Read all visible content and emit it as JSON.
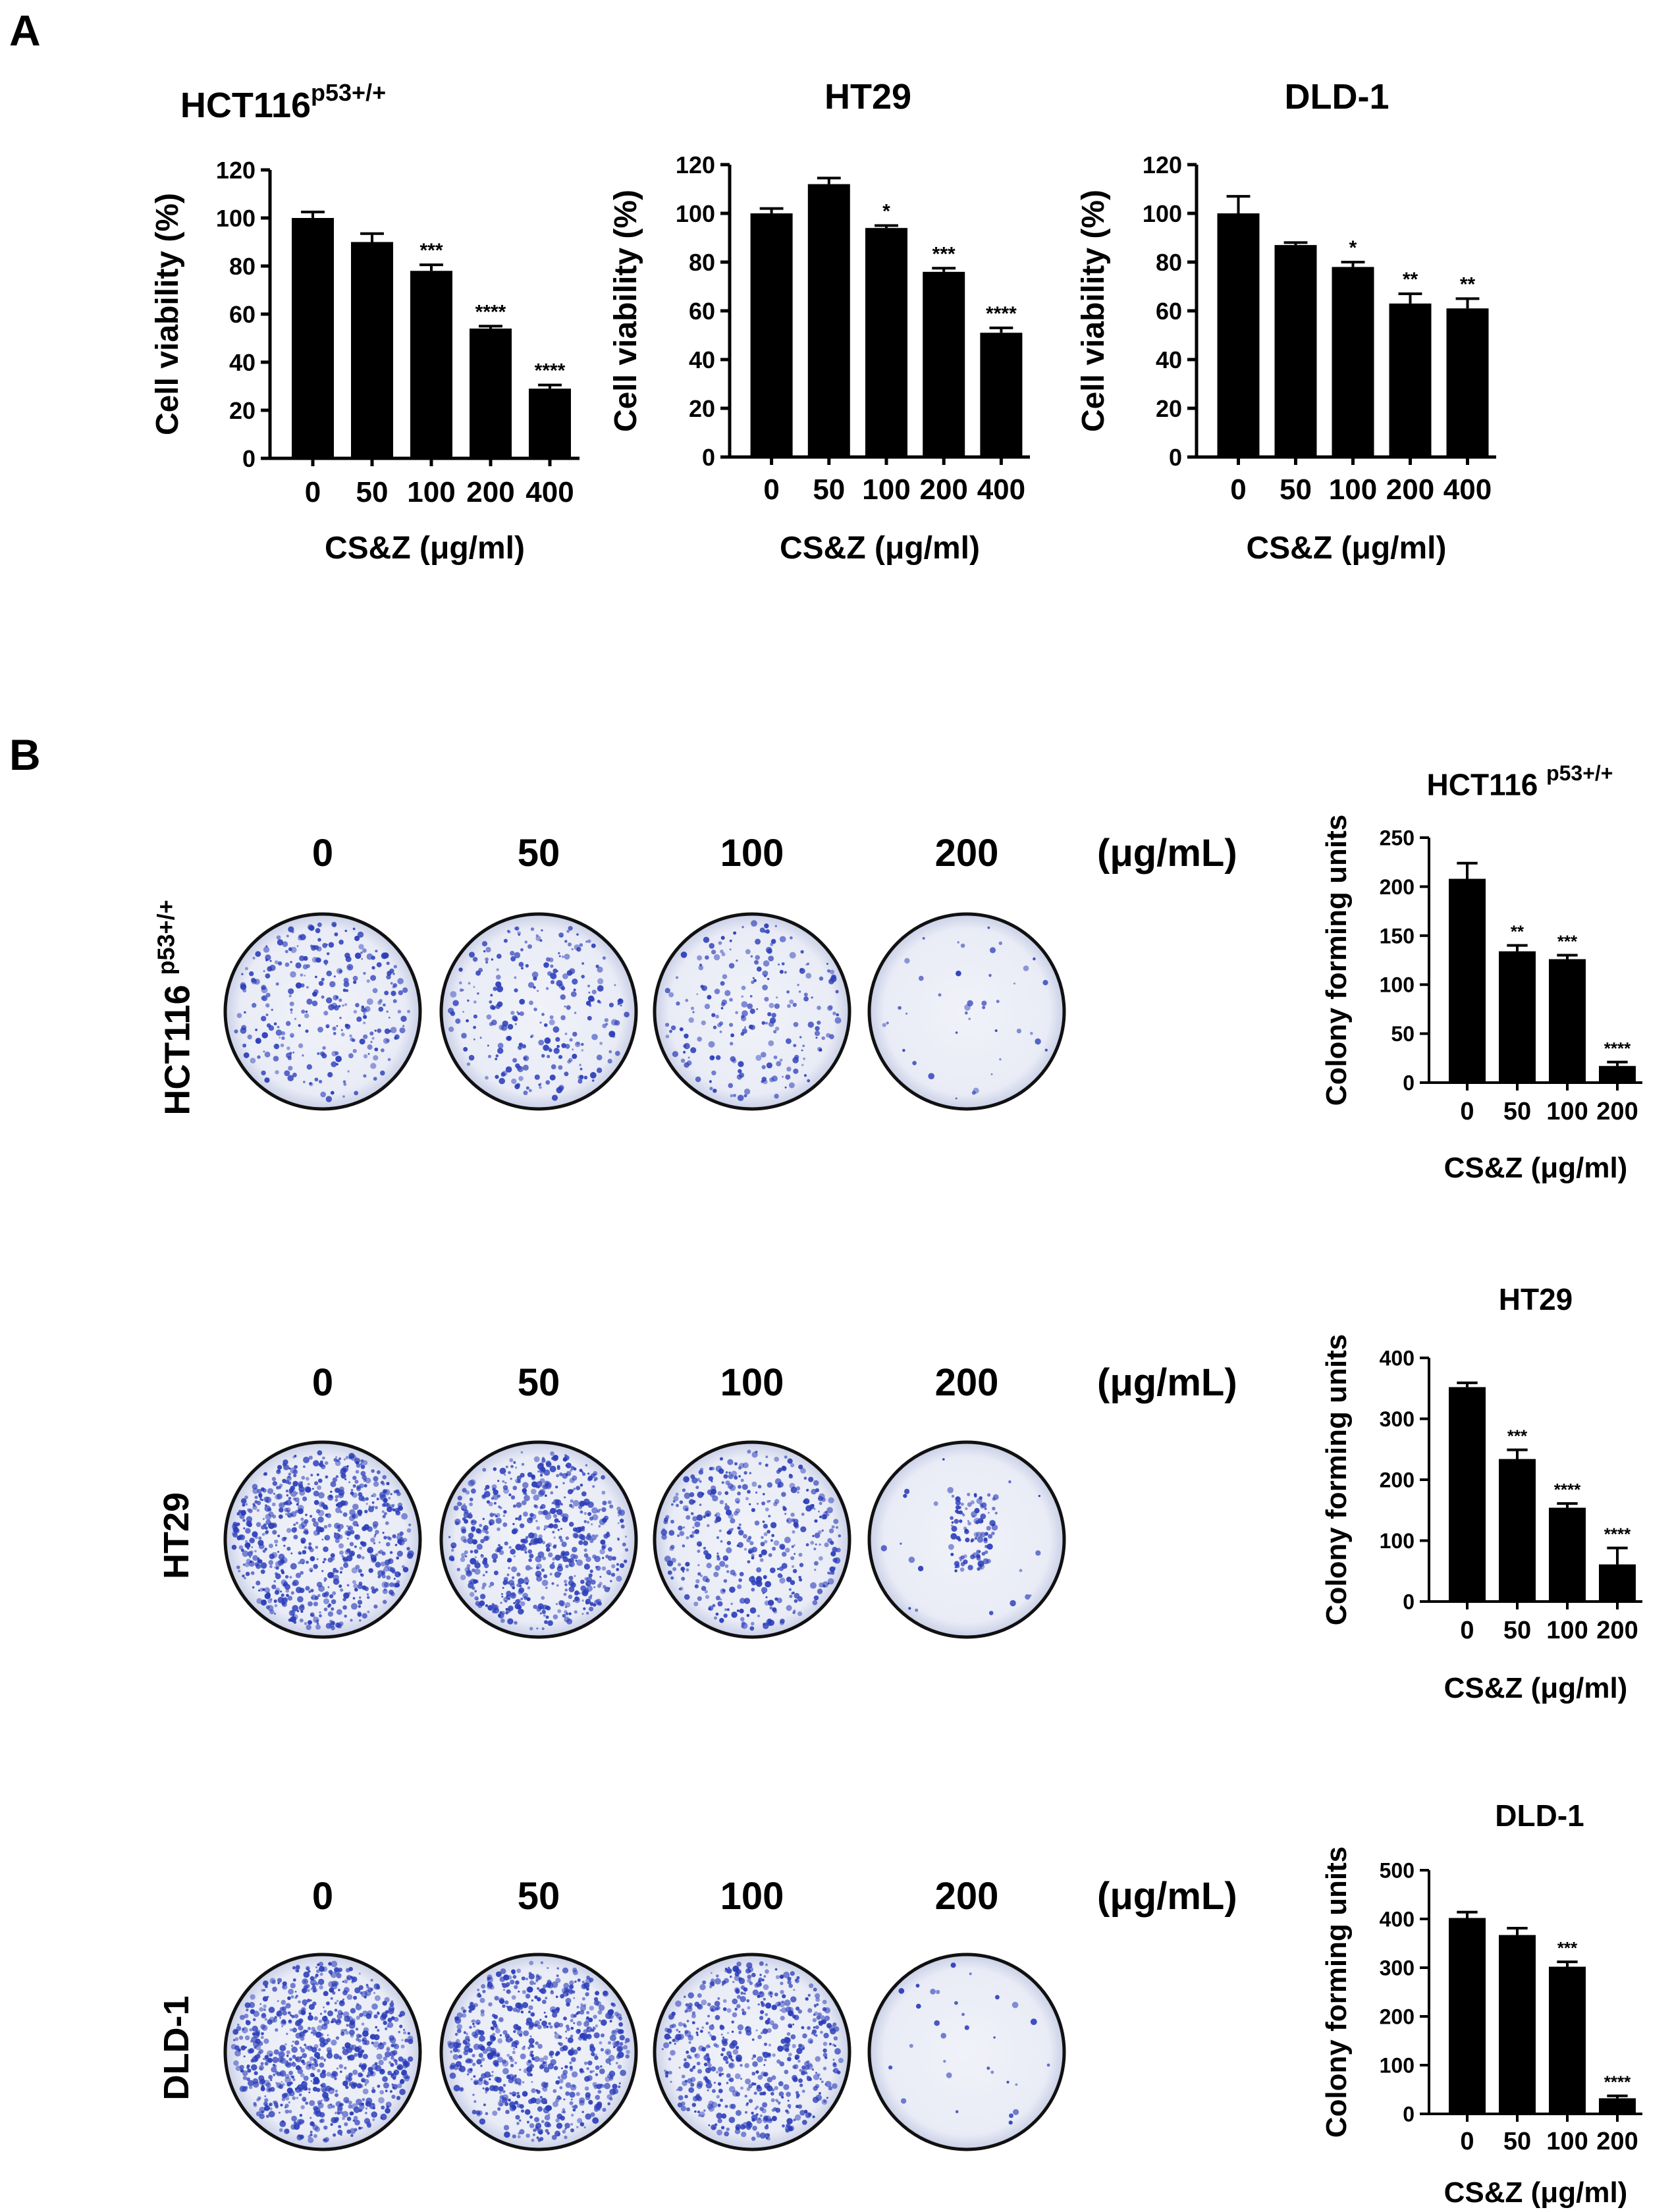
{
  "panel_a": {
    "letter": "A"
  },
  "panel_b": {
    "letter": "B",
    "doses": [
      "0",
      "50",
      "100",
      "200"
    ],
    "units": "(μg/mL)",
    "rows": [
      {
        "label": "HCT116",
        "label_sup": "p53+/+"
      },
      {
        "label": "HT29",
        "label_sup": ""
      },
      {
        "label": "DLD-1",
        "label_sup": ""
      }
    ]
  },
  "colors": {
    "bar": "#000000",
    "plate_stain": "#2a3cb8",
    "plate_bg": "#e9ecf6"
  },
  "chart_data": [
    {
      "id": "a1",
      "type": "bar",
      "title": "HCT116",
      "title_sup": "p53+/+",
      "categories": [
        "0",
        "50",
        "100",
        "200",
        "400"
      ],
      "values": [
        100,
        90,
        78,
        54,
        29
      ],
      "errors": [
        2.5,
        3.5,
        2.5,
        1,
        1.5
      ],
      "sig": [
        "",
        "",
        "***",
        "****",
        "****"
      ],
      "xlabel": "CS&Z (μg/ml)",
      "ylabel": "Cell viability (%)",
      "ylim": [
        0,
        120
      ],
      "yticks": [
        0,
        20,
        40,
        60,
        80,
        100,
        120
      ]
    },
    {
      "id": "a2",
      "type": "bar",
      "title": "HT29",
      "title_sup": "",
      "categories": [
        "0",
        "50",
        "100",
        "200",
        "400"
      ],
      "values": [
        100,
        112,
        94,
        76,
        51
      ],
      "errors": [
        2,
        2.5,
        1,
        1.5,
        2
      ],
      "sig": [
        "",
        "",
        "*",
        "***",
        "****"
      ],
      "xlabel": "CS&Z (μg/ml)",
      "ylabel": "Cell viability (%)",
      "ylim": [
        0,
        120
      ],
      "yticks": [
        0,
        20,
        40,
        60,
        80,
        100,
        120
      ]
    },
    {
      "id": "a3",
      "type": "bar",
      "title": "DLD-1",
      "title_sup": "",
      "categories": [
        "0",
        "50",
        "100",
        "200",
        "400"
      ],
      "values": [
        100,
        87,
        78,
        63,
        61
      ],
      "errors": [
        7,
        1,
        2,
        4,
        4
      ],
      "sig": [
        "",
        "",
        "*",
        "**",
        "**"
      ],
      "xlabel": "CS&Z (μg/ml)",
      "ylabel": "Cell viability (%)",
      "ylim": [
        0,
        120
      ],
      "yticks": [
        0,
        20,
        40,
        60,
        80,
        100,
        120
      ]
    },
    {
      "id": "b1",
      "type": "bar",
      "title": "HCT116",
      "title_sup": "p53+/+",
      "categories": [
        "0",
        "50",
        "100",
        "200"
      ],
      "values": [
        208,
        134,
        126,
        17
      ],
      "errors": [
        16,
        6,
        4,
        4
      ],
      "sig": [
        "",
        "**",
        "***",
        "****"
      ],
      "xlabel": "CS&Z (μg/ml)",
      "ylabel": "Colony forming units",
      "ylim": [
        0,
        250
      ],
      "yticks": [
        0,
        50,
        100,
        150,
        200,
        250
      ]
    },
    {
      "id": "b2",
      "type": "bar",
      "title": "HT29",
      "title_sup": "",
      "categories": [
        "0",
        "50",
        "100",
        "200"
      ],
      "values": [
        352,
        234,
        154,
        61
      ],
      "errors": [
        7,
        15,
        7,
        27
      ],
      "sig": [
        "",
        "***",
        "****",
        "****"
      ],
      "xlabel": "CS&Z (μg/ml)",
      "ylabel": "Colony forming units",
      "ylim": [
        0,
        400
      ],
      "yticks": [
        0,
        100,
        200,
        300,
        400
      ]
    },
    {
      "id": "b3",
      "type": "bar",
      "title": "DLD-1",
      "title_sup": "",
      "categories": [
        "0",
        "50",
        "100",
        "200"
      ],
      "values": [
        402,
        367,
        302,
        32
      ],
      "errors": [
        12,
        14,
        10,
        5
      ],
      "sig": [
        "",
        "",
        "***",
        "****"
      ],
      "xlabel": "CS&Z (μg/ml)",
      "ylabel": "Colony forming units",
      "ylim": [
        0,
        500
      ],
      "yticks": [
        0,
        100,
        200,
        300,
        400,
        500
      ]
    }
  ]
}
